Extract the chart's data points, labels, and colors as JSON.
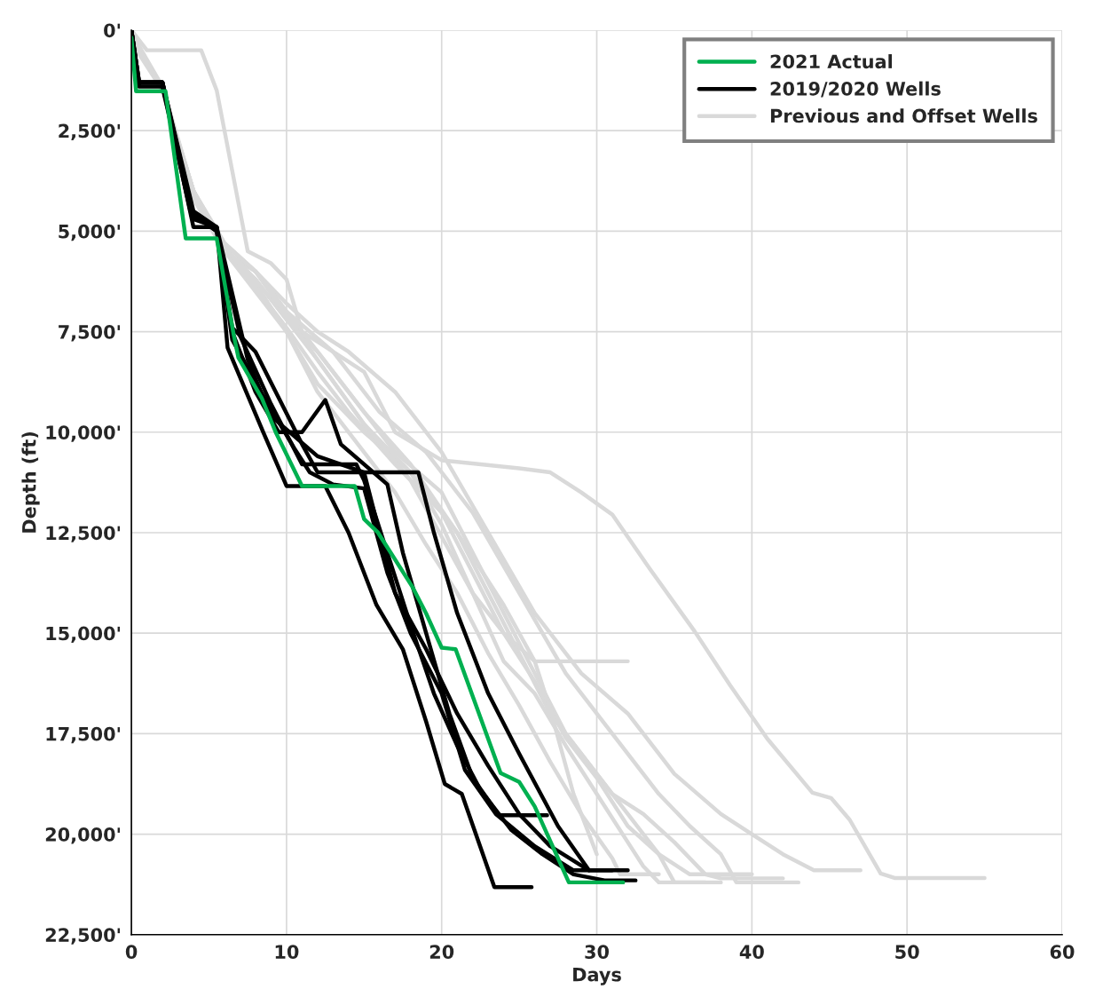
{
  "chart_data": {
    "type": "line",
    "xlabel": "Days",
    "ylabel": "Depth (ft)",
    "xlim": [
      0,
      60
    ],
    "xticks": [
      0,
      10,
      20,
      30,
      40,
      50,
      60
    ],
    "ylim": [
      22500,
      0
    ],
    "yticks": [
      {
        "value": 0,
        "label": "0'"
      },
      {
        "value": 2500,
        "label": "2,500'"
      },
      {
        "value": 5000,
        "label": "5,000'"
      },
      {
        "value": 7500,
        "label": "7,500'"
      },
      {
        "value": 10000,
        "label": "10,000'"
      },
      {
        "value": 12500,
        "label": "12,500'"
      },
      {
        "value": 15000,
        "label": "15,000'"
      },
      {
        "value": 17500,
        "label": "17,500'"
      },
      {
        "value": 20000,
        "label": "20,000'"
      },
      {
        "value": 22500,
        "label": "22,500'"
      }
    ],
    "grid": true,
    "legend": "top right",
    "marker": "none",
    "line_style": "solid",
    "series": [
      {
        "name": "Previous and Offset Wells",
        "color": "#d9d9d9",
        "x": [
          0,
          1,
          4.5,
          5.5,
          6.5,
          7.5,
          9,
          10,
          11,
          13,
          15,
          17,
          20,
          25,
          27,
          29,
          31,
          33.4,
          36.3,
          38.6,
          41,
          43.9,
          45.1,
          46.3,
          48.3,
          49.2,
          55
        ],
        "values": [
          0,
          500,
          500,
          1500,
          3500,
          5500,
          5800,
          6200,
          7500,
          8000,
          8500,
          10000,
          10700,
          10900,
          11000,
          11500,
          12050,
          13390,
          14950,
          16300,
          17630,
          18970,
          19100,
          19640,
          20980,
          21090,
          21090
        ]
      },
      {
        "color": "#d9d9d9",
        "x": [
          0,
          0.5,
          2,
          4,
          6,
          8,
          10,
          12,
          14,
          17,
          20,
          23,
          26,
          29,
          32,
          35,
          38,
          40,
          42,
          44,
          47
        ],
        "values": [
          0,
          500,
          1500,
          4000,
          5500,
          6000,
          6800,
          7500,
          8000,
          9000,
          10500,
          12500,
          14500,
          16000,
          17000,
          18500,
          19500,
          20000,
          20500,
          20900,
          20900
        ]
      },
      {
        "color": "#d9d9d9",
        "x": [
          0,
          0.5,
          2,
          4,
          6,
          8,
          10,
          13,
          16,
          19,
          22,
          25,
          28,
          31,
          34,
          36,
          38,
          39,
          43
        ],
        "values": [
          0,
          500,
          1500,
          4000,
          5500,
          6000,
          7000,
          8000,
          9500,
          10500,
          12000,
          14000,
          16000,
          17500,
          19000,
          19800,
          20500,
          21200,
          21200
        ]
      },
      {
        "color": "#d9d9d9",
        "x": [
          0,
          0.5,
          2,
          4,
          6,
          8,
          10,
          12,
          15,
          18,
          21,
          23,
          25,
          27,
          29,
          31,
          33,
          35,
          37,
          38,
          42
        ],
        "values": [
          0,
          600,
          1500,
          4200,
          5500,
          6200,
          7200,
          8000,
          9500,
          10800,
          12500,
          14000,
          15500,
          17000,
          18000,
          19000,
          19500,
          20200,
          21000,
          21100,
          21100
        ]
      },
      {
        "color": "#d9d9d9",
        "x": [
          0,
          0.5,
          2,
          4,
          6,
          8,
          10,
          12,
          14,
          17,
          20,
          22,
          24,
          26,
          28,
          30,
          32,
          34,
          35,
          37
        ],
        "values": [
          0,
          400,
          1400,
          4000,
          5300,
          6000,
          7000,
          8000,
          9000,
          10500,
          11500,
          13000,
          14500,
          16000,
          17500,
          18500,
          19500,
          20500,
          21200,
          21200
        ]
      },
      {
        "color": "#d9d9d9",
        "x": [
          0,
          0.5,
          2,
          4,
          6,
          8,
          10,
          12,
          15,
          18,
          20,
          22,
          24,
          26,
          28,
          30,
          32,
          33,
          34,
          38
        ],
        "values": [
          0,
          400,
          1500,
          4100,
          5400,
          6300,
          7500,
          8800,
          10000,
          11000,
          12300,
          14000,
          15700,
          16500,
          17800,
          19000,
          20200,
          20800,
          21200,
          21200
        ]
      },
      {
        "color": "#d9d9d9",
        "x": [
          0,
          0.5,
          2,
          4,
          6,
          8,
          10,
          12,
          15,
          17,
          19,
          21,
          23,
          25,
          27,
          29,
          31,
          31.5,
          34
        ],
        "values": [
          0,
          500,
          1500,
          4000,
          5500,
          6500,
          7500,
          9000,
          10500,
          11500,
          12800,
          14000,
          15500,
          16800,
          18200,
          19500,
          20600,
          21000,
          21000
        ]
      },
      {
        "color": "#d9d9d9",
        "x": [
          0,
          0.5,
          2,
          4,
          6,
          8,
          10,
          12,
          14,
          17,
          20,
          22,
          24,
          26,
          28,
          30,
          32,
          34,
          36,
          40
        ],
        "values": [
          0,
          500,
          1500,
          4000,
          5400,
          6400,
          7400,
          8500,
          9500,
          10800,
          12000,
          13500,
          15000,
          16200,
          17600,
          18600,
          19800,
          20500,
          21000,
          21000
        ]
      },
      {
        "color": "#d9d9d9",
        "x": [
          0,
          0.5,
          2,
          4,
          6,
          8,
          10,
          12,
          15,
          18,
          21,
          24,
          26,
          27,
          28.5,
          30
        ],
        "values": [
          0,
          500,
          1500,
          4100,
          5400,
          6200,
          7200,
          8200,
          9800,
          11000,
          12500,
          14300,
          15700,
          16900,
          19000,
          20500
        ]
      },
      {
        "color": "#d9d9d9",
        "x": [
          0,
          0.5,
          2,
          4,
          6,
          8,
          10,
          12,
          15,
          18,
          20,
          22,
          24,
          26,
          28,
          30,
          32
        ],
        "values": [
          0,
          500,
          1500,
          4000,
          5300,
          6000,
          7100,
          8200,
          9800,
          11200,
          12600,
          14000,
          15000,
          15700,
          15700,
          15700,
          15700
        ]
      },
      {
        "name": "2019/2020 Wells",
        "color": "#000000",
        "x": [
          0,
          0.3,
          2,
          4,
          5.5,
          6.2,
          8.5,
          10,
          12.5,
          14,
          15.8,
          17.5,
          19,
          20.2,
          21.3,
          23.4,
          25.8
        ],
        "values": [
          0,
          1300,
          1300,
          4900,
          4900,
          7900,
          10000,
          11340,
          11340,
          12500,
          14300,
          15400,
          17200,
          18750,
          19000,
          21320,
          21320
        ]
      },
      {
        "color": "#000000",
        "x": [
          0,
          0.5,
          2,
          3.8,
          5.5,
          6.5,
          8,
          9.5,
          11,
          12.5,
          13.5,
          16.5,
          17.5,
          19,
          20.5,
          22,
          23.7,
          26.8
        ],
        "values": [
          0,
          1400,
          1400,
          4500,
          5000,
          7500,
          9000,
          10000,
          10000,
          9200,
          10300,
          11300,
          13000,
          15000,
          17000,
          18600,
          19530,
          19530
        ]
      },
      {
        "color": "#000000",
        "x": [
          0,
          0.5,
          2,
          4,
          5.5,
          6.5,
          8,
          11,
          12,
          18.5,
          19.5,
          21,
          23,
          25,
          27.5,
          29.5,
          31
        ],
        "values": [
          0,
          1300,
          1300,
          4500,
          4900,
          7400,
          8000,
          10300,
          11000,
          11000,
          12500,
          14500,
          16500,
          18000,
          19800,
          20900,
          20900
        ]
      },
      {
        "color": "#000000",
        "x": [
          0,
          0.5,
          2,
          4,
          5.5,
          7,
          9,
          11,
          14.5,
          15,
          16.5,
          18,
          19.5,
          21,
          22.5,
          24.5,
          26.5,
          28.5,
          30.5,
          32.5
        ],
        "values": [
          0,
          1400,
          1400,
          4600,
          5000,
          7600,
          9300,
          10800,
          10800,
          11200,
          13000,
          14800,
          16500,
          17800,
          18900,
          19900,
          20500,
          21000,
          21150,
          21150
        ]
      },
      {
        "color": "#000000",
        "x": [
          0,
          0.5,
          2,
          4,
          5.5,
          6.5,
          8.5,
          10.5,
          11.5,
          13,
          15,
          16.5,
          18,
          20,
          21.5,
          23.5,
          26,
          28.5,
          29.5
        ],
        "values": [
          0,
          1300,
          1300,
          4700,
          4900,
          7700,
          9100,
          10400,
          11000,
          11300,
          11400,
          13500,
          15000,
          16500,
          18400,
          19500,
          20300,
          20900,
          20900
        ]
      },
      {
        "color": "#000000",
        "x": [
          0,
          0.5,
          2,
          4,
          5.5,
          7.5,
          9,
          12,
          15,
          16,
          17,
          19,
          21,
          23,
          25,
          27,
          29.5,
          32
        ],
        "values": [
          0,
          1300,
          1300,
          4600,
          4900,
          8200,
          9600,
          10600,
          11000,
          12500,
          14000,
          15400,
          17000,
          18300,
          19500,
          20300,
          20900,
          20900
        ]
      },
      {
        "name": "2021 Actual",
        "color": "#00b050",
        "x": [
          0,
          0.3,
          2.2,
          3.5,
          5.5,
          6.6,
          6.9,
          8.4,
          9.3,
          11,
          14.4,
          15,
          15.9,
          18.1,
          19,
          20,
          20.9,
          23.8,
          25,
          26,
          28.2,
          31.7
        ],
        "values": [
          180,
          1520,
          1520,
          5180,
          5180,
          7590,
          8150,
          9150,
          10000,
          11340,
          11340,
          12160,
          12500,
          13840,
          14510,
          15360,
          15400,
          18480,
          18700,
          19310,
          21200,
          21200
        ]
      }
    ]
  }
}
